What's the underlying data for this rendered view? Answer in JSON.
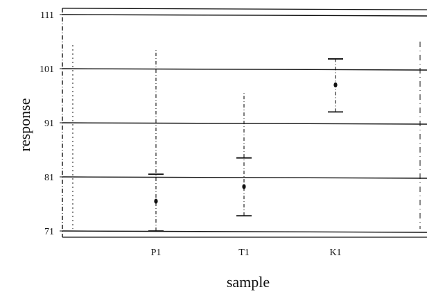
{
  "chart_data": {
    "type": "scatter",
    "subtype": "interval-plot",
    "xlabel": "sample",
    "ylabel": "response",
    "categories": [
      "P1",
      "T1",
      "K1"
    ],
    "y_ticks": [
      71,
      81,
      91,
      101,
      111
    ],
    "ylim": [
      70,
      112
    ],
    "grid": "horizontal",
    "series": [
      {
        "points": [
          {
            "x": "P1",
            "mean": 76.5,
            "lower": 71.0,
            "upper": 81.5,
            "whisker_high": 104.8
          },
          {
            "x": "T1",
            "mean": 79.2,
            "lower": 73.8,
            "upper": 84.5,
            "whisker_high": 96.5
          },
          {
            "x": "K1",
            "mean": 98.0,
            "lower": 93.0,
            "upper": 102.8,
            "whisker_high": 102.8
          }
        ]
      }
    ],
    "colors": {
      "ink": "#111111",
      "background": "#ffffff"
    }
  }
}
